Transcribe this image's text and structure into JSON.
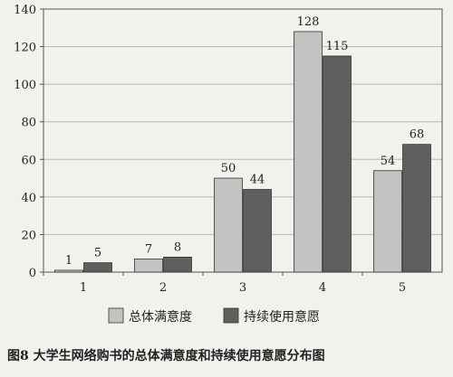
{
  "chart_data": {
    "type": "bar",
    "categories": [
      "1",
      "2",
      "3",
      "4",
      "5"
    ],
    "ylim": [
      0,
      140
    ],
    "yticks": [
      0,
      20,
      40,
      60,
      80,
      100,
      120,
      140
    ],
    "grid": true,
    "legend_position": "bottom",
    "series": [
      {
        "name": "总体满意度",
        "values": [
          1,
          7,
          50,
          128,
          54
        ],
        "color": "#c3c3c3"
      },
      {
        "name": "持续使用意愿",
        "values": [
          5,
          8,
          44,
          115,
          68
        ],
        "color": "#5f5f5f"
      }
    ],
    "caption": "图8  大学生网络购书的总体满意度和持续使用意愿分布图"
  }
}
